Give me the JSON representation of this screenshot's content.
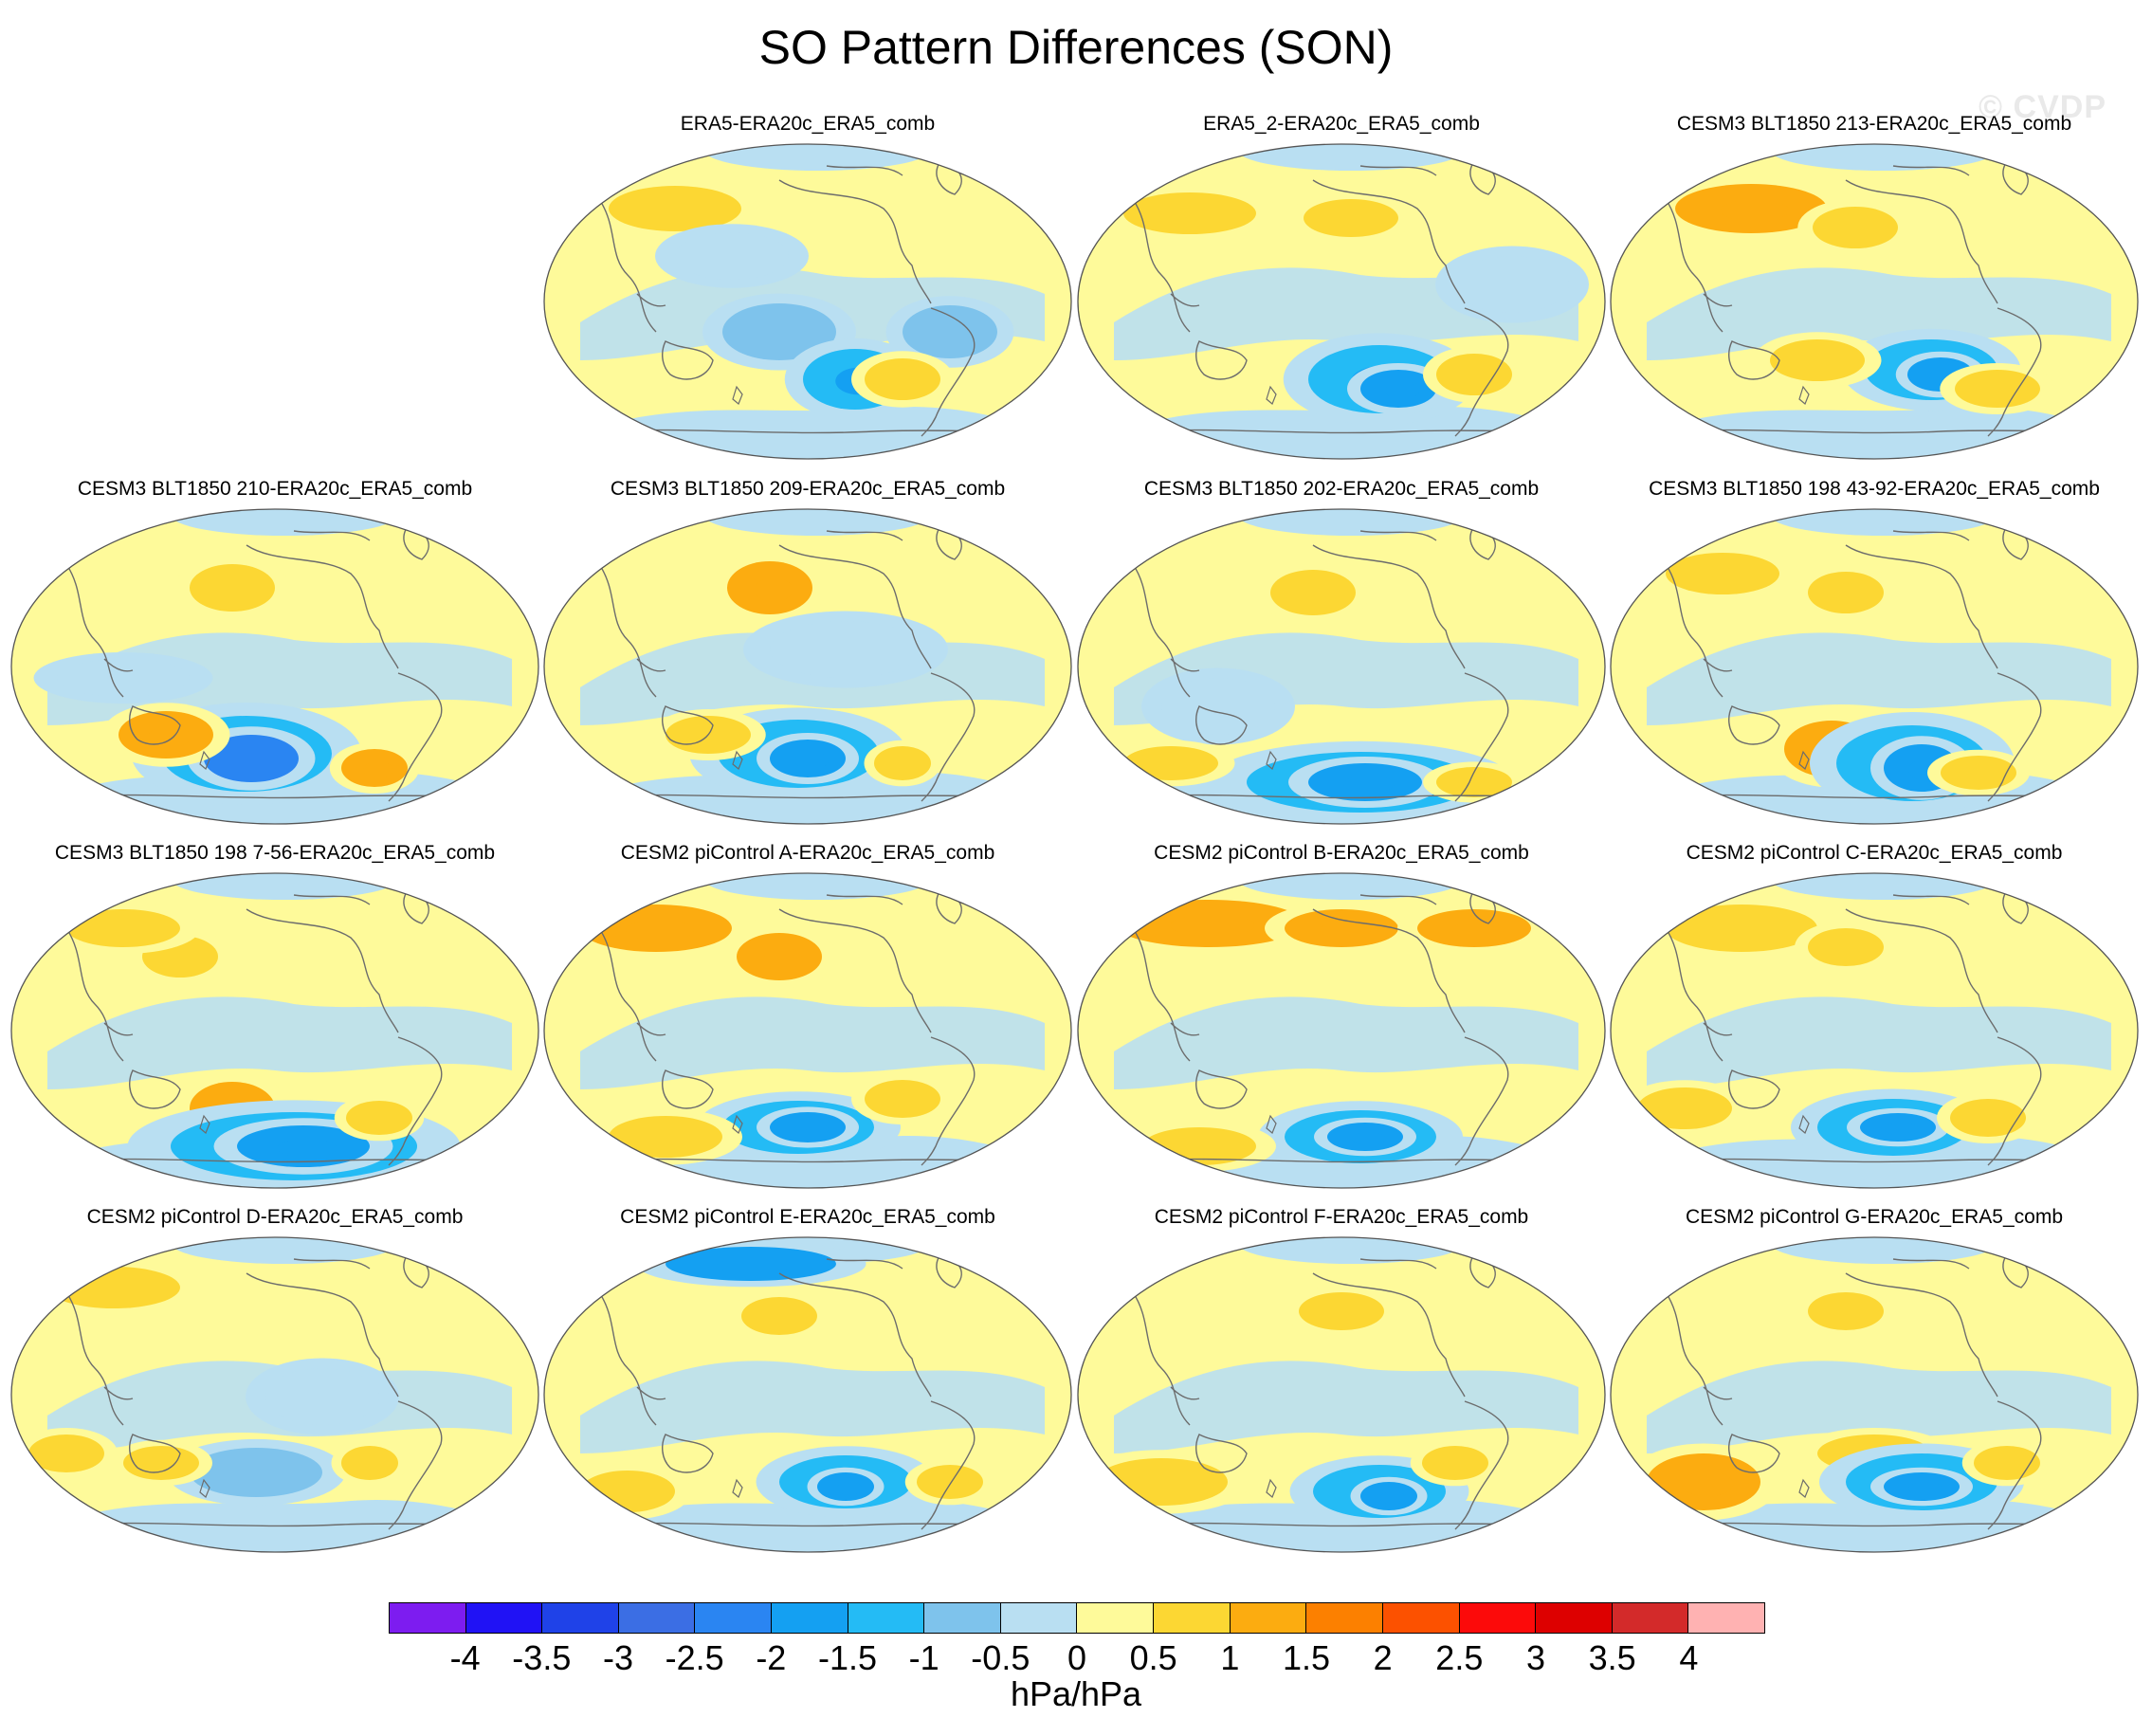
{
  "title": "SO Pattern Differences (SON)",
  "watermark": "© CVDP",
  "units": "hPa/hPa",
  "colorbar": {
    "colors": [
      "#7d1cf0",
      "#2012f5",
      "#1f42e8",
      "#3b6ee4",
      "#2a85f2",
      "#14a0f2",
      "#24bbf5",
      "#7ec3ec",
      "#b9dff2",
      "#fefa9a",
      "#fcd733",
      "#fcac10",
      "#fc8000",
      "#fc5100",
      "#fc0a0a",
      "#dd0000",
      "#d32a2a",
      "#ffb2b2"
    ],
    "labels": [
      "-4",
      "-3.5",
      "-3",
      "-2.5",
      "-2",
      "-1.5",
      "-1",
      "-0.5",
      "0",
      "0.5",
      "1",
      "1.5",
      "2",
      "2.5",
      "3",
      "3.5",
      "4"
    ]
  },
  "panels": [
    {
      "title": "ERA5-ERA20c_ERA5_comb"
    },
    {
      "title": "ERA5_2-ERA20c_ERA5_comb"
    },
    {
      "title": "CESM3 BLT1850 213-ERA20c_ERA5_comb"
    },
    {
      "title": "CESM3 BLT1850 210-ERA20c_ERA5_comb"
    },
    {
      "title": "CESM3 BLT1850 209-ERA20c_ERA5_comb"
    },
    {
      "title": "CESM3 BLT1850 202-ERA20c_ERA5_comb"
    },
    {
      "title": "CESM3 BLT1850 198 43-92-ERA20c_ERA5_comb"
    },
    {
      "title": "CESM3 BLT1850 198 7-56-ERA20c_ERA5_comb"
    },
    {
      "title": "CESM2 piControl A-ERA20c_ERA5_comb"
    },
    {
      "title": "CESM2 piControl B-ERA20c_ERA5_comb"
    },
    {
      "title": "CESM2 piControl C-ERA20c_ERA5_comb"
    },
    {
      "title": "CESM2 piControl D-ERA20c_ERA5_comb"
    },
    {
      "title": "CESM2 piControl E-ERA20c_ERA5_comb"
    },
    {
      "title": "CESM2 piControl F-ERA20c_ERA5_comb"
    },
    {
      "title": "CESM2 piControl G-ERA20c_ERA5_comb"
    }
  ]
}
